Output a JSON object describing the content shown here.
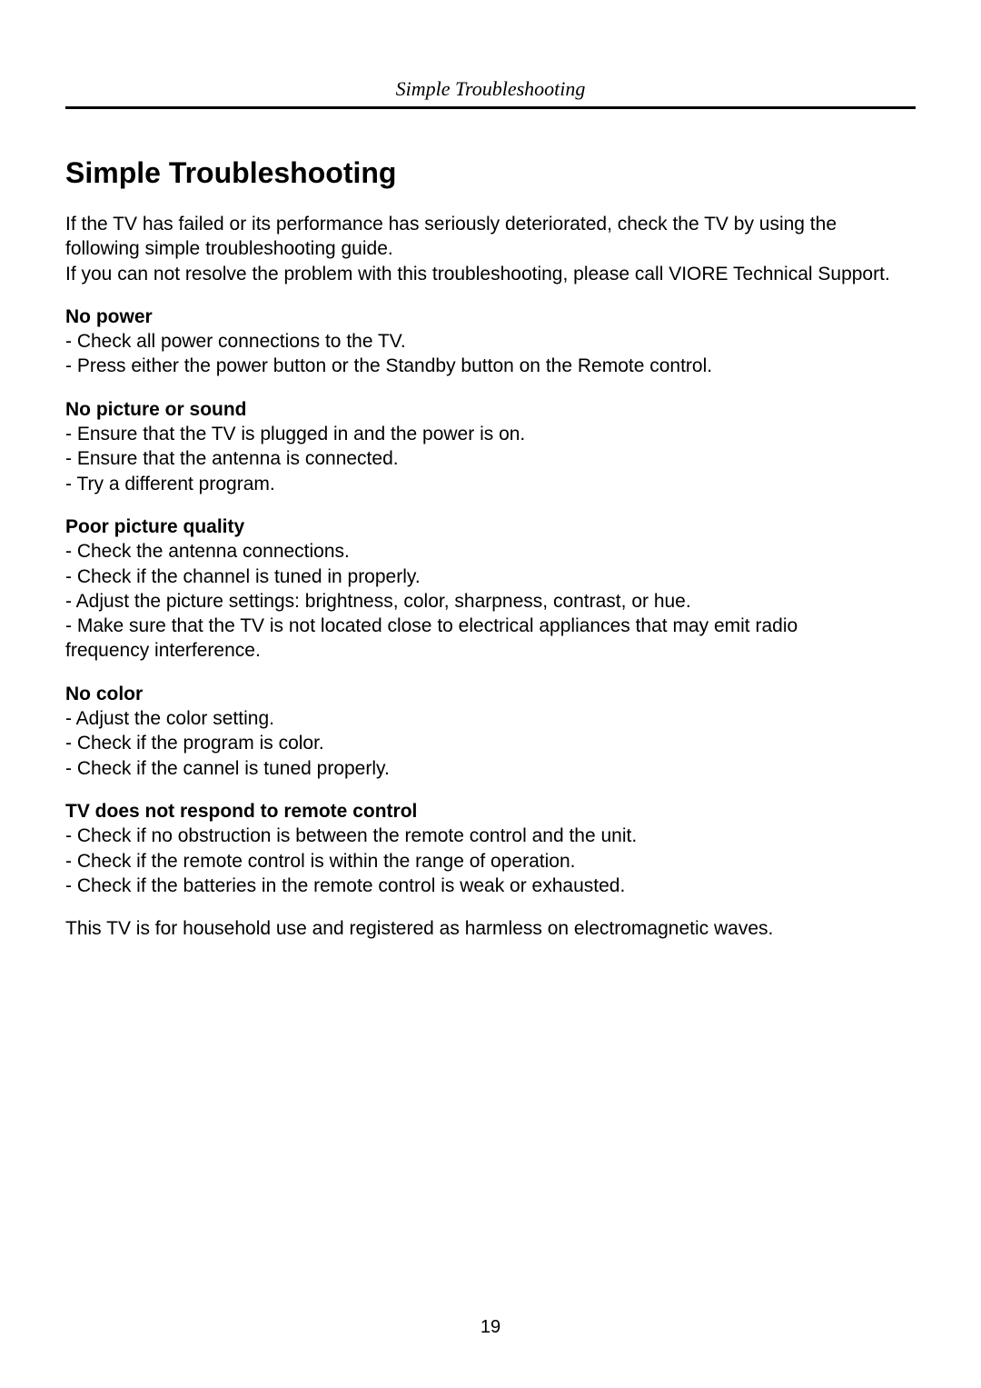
{
  "header": "Simple Troubleshooting",
  "title": "Simple Troubleshooting",
  "intro": "If the TV has failed or its performance has seriously deteriorated, check the TV by using the following simple troubleshooting guide.\nIf you can not resolve the problem with this troubleshooting, please call VIORE Technical Support.",
  "sections": [
    {
      "heading": "No power",
      "items": [
        "- Check all power connections to the TV.",
        "- Press either the power button or the Standby button on the Remote control."
      ]
    },
    {
      "heading": "No picture or sound",
      "items": [
        "- Ensure that the TV is plugged in and the power is on.",
        "- Ensure that the antenna is connected.",
        "- Try a different program."
      ]
    },
    {
      "heading": "Poor picture quality",
      "items": [
        "- Check the antenna connections.",
        "- Check if the channel is tuned in properly.",
        "- Adjust the picture settings: brightness, color, sharpness, contrast, or hue.",
        "- Make sure that the TV is not located close to electrical appliances that may emit radio\n  frequency interference."
      ]
    },
    {
      "heading": "No color",
      "items": [
        "- Adjust the color setting.",
        "- Check if the program is color.",
        "- Check if the cannel is tuned properly."
      ]
    },
    {
      "heading": "TV does not respond to remote control",
      "items": [
        "- Check if no obstruction is between the remote control and the unit.",
        "- Check if the remote control is within the range of operation.",
        "- Check if the batteries in the remote control is weak or exhausted."
      ]
    }
  ],
  "footnote": "This TV is for household use and registered as harmless on electromagnetic waves.",
  "pageNumber": "19"
}
